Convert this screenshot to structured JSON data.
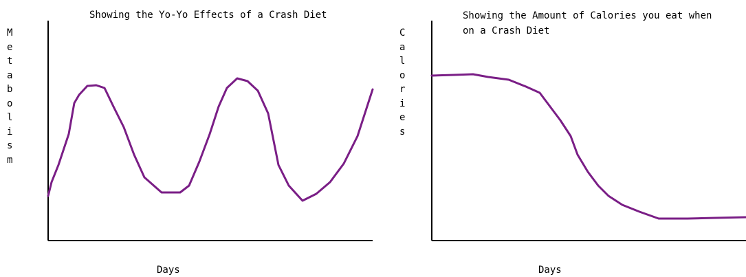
{
  "chart_data": [
    {
      "type": "line",
      "title": "Showing the Yo-Yo Effects of a Crash Diet",
      "x_label": "Days",
      "y_label": "Metabolism",
      "x": [
        0,
        5,
        15,
        30,
        38,
        45,
        57,
        70,
        82,
        95,
        110,
        125,
        140,
        165,
        192,
        205,
        220,
        235,
        248,
        260,
        275,
        290,
        305,
        320,
        335,
        350,
        370,
        390,
        410,
        430,
        450,
        472
      ],
      "series": [
        {
          "color": "#7a1e86",
          "values": [
            65,
            85,
            110,
            155,
            200,
            212,
            225,
            226,
            222,
            195,
            165,
            125,
            92,
            70,
            70,
            80,
            115,
            155,
            195,
            222,
            236,
            232,
            218,
            185,
            110,
            80,
            58,
            68,
            85,
            112,
            152,
            220
          ]
        }
      ],
      "xlim": [
        0,
        472
      ],
      "ylim": [
        0,
        320
      ]
    },
    {
      "type": "line",
      "title": "Showing the Amount of Calories you eat when on a Crash Diet",
      "x_label": "Days",
      "y_label": "Calories",
      "x": [
        0,
        32,
        60,
        82,
        112,
        137,
        157,
        172,
        187,
        202,
        212,
        227,
        242,
        257,
        277,
        302,
        330,
        372,
        412,
        457
      ],
      "series": [
        {
          "color": "#7a1e86",
          "values": [
            240,
            241,
            242,
            238,
            234,
            224,
            215,
            195,
            175,
            152,
            125,
            100,
            80,
            65,
            52,
            42,
            32,
            32,
            33,
            34
          ]
        }
      ],
      "xlim": [
        0,
        457
      ],
      "ylim": [
        0,
        320
      ]
    }
  ]
}
